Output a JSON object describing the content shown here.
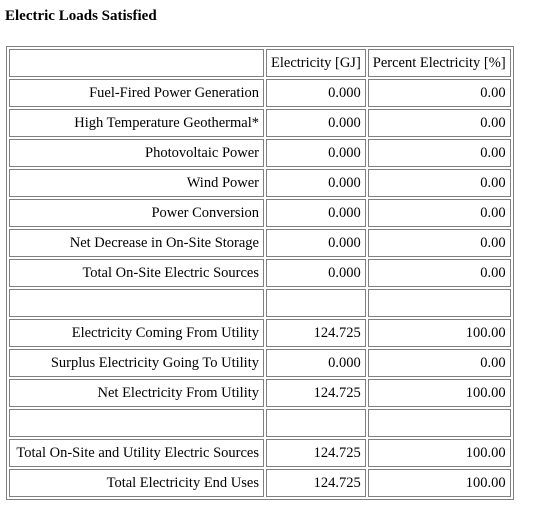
{
  "title": "Electric Loads Satisfied",
  "columns": [
    "",
    "Electricity [GJ]",
    "Percent Electricity [%]"
  ],
  "rows": [
    {
      "label": "Fuel-Fired Power Generation",
      "electricity": "0.000",
      "percent": "0.00"
    },
    {
      "label": "High Temperature Geothermal*",
      "electricity": "0.000",
      "percent": "0.00"
    },
    {
      "label": "Photovoltaic Power",
      "electricity": "0.000",
      "percent": "0.00"
    },
    {
      "label": "Wind Power",
      "electricity": "0.000",
      "percent": "0.00"
    },
    {
      "label": "Power Conversion",
      "electricity": "0.000",
      "percent": "0.00"
    },
    {
      "label": "Net Decrease in On-Site Storage",
      "electricity": "0.000",
      "percent": "0.00"
    },
    {
      "label": "Total On-Site Electric Sources",
      "electricity": "0.000",
      "percent": "0.00"
    },
    {
      "label": "",
      "electricity": "",
      "percent": ""
    },
    {
      "label": "Electricity Coming From Utility",
      "electricity": "124.725",
      "percent": "100.00"
    },
    {
      "label": "Surplus Electricity Going To Utility",
      "electricity": "0.000",
      "percent": "0.00"
    },
    {
      "label": "Net Electricity From Utility",
      "electricity": "124.725",
      "percent": "100.00"
    },
    {
      "label": "",
      "electricity": "",
      "percent": ""
    },
    {
      "label": "Total On-Site and Utility Electric Sources",
      "electricity": "124.725",
      "percent": "100.00"
    },
    {
      "label": "Total Electricity End Uses",
      "electricity": "124.725",
      "percent": "100.00"
    }
  ]
}
